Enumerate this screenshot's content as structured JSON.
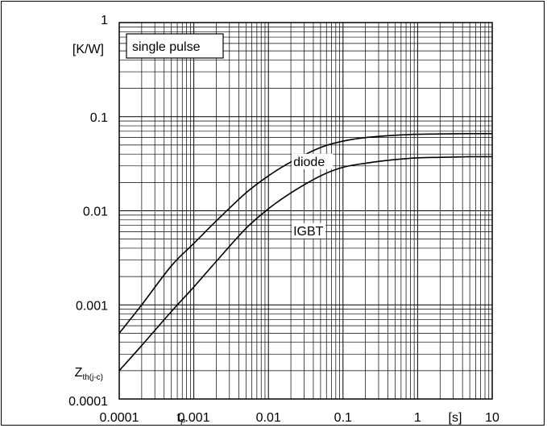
{
  "chart_data": {
    "type": "line",
    "title": "",
    "xscale": "log",
    "yscale": "log",
    "xlim": [
      0.0001,
      10
    ],
    "ylim": [
      0.0001,
      1
    ],
    "grid": true,
    "x_ticks": [
      {
        "value": 0.0001,
        "label": "0.0001"
      },
      {
        "value": 0.001,
        "label": "0.001"
      },
      {
        "value": 0.01,
        "label": "0.01"
      },
      {
        "value": 0.1,
        "label": "0.1"
      },
      {
        "value": 1,
        "label": "1"
      },
      {
        "value": 10,
        "label": "10"
      }
    ],
    "y_ticks": [
      {
        "value": 1,
        "label": "1"
      },
      {
        "value": 0.1,
        "label": "0.1"
      },
      {
        "value": 0.01,
        "label": "0.01"
      },
      {
        "value": 0.001,
        "label": "0.001"
      },
      {
        "value": 0.0001,
        "label": "0.0001"
      }
    ],
    "xlabel": {
      "symbol": "t",
      "subscript": "P"
    },
    "xunit": "[s]",
    "ylabel": {
      "symbol": "Z",
      "subscript": "th(j-c)"
    },
    "yunit": "[K/W]",
    "annotation": "single pulse",
    "series": [
      {
        "name": "diode",
        "color": "#000000",
        "x": [
          0.0001,
          0.0002,
          0.0005,
          0.001,
          0.002,
          0.005,
          0.01,
          0.02,
          0.05,
          0.1,
          0.2,
          0.5,
          1,
          2,
          5,
          10
        ],
        "y": [
          0.0005,
          0.001,
          0.0026,
          0.0045,
          0.0078,
          0.0155,
          0.0235,
          0.033,
          0.047,
          0.055,
          0.06,
          0.0635,
          0.065,
          0.0655,
          0.066,
          0.066
        ]
      },
      {
        "name": "IGBT",
        "color": "#000000",
        "x": [
          0.0001,
          0.0002,
          0.0005,
          0.001,
          0.002,
          0.005,
          0.01,
          0.02,
          0.05,
          0.1,
          0.2,
          0.5,
          1,
          2,
          5,
          10
        ],
        "y": [
          0.0002,
          0.00037,
          0.00085,
          0.00155,
          0.0029,
          0.0065,
          0.0105,
          0.0155,
          0.0235,
          0.029,
          0.032,
          0.035,
          0.0365,
          0.037,
          0.0375,
          0.0375
        ]
      }
    ]
  }
}
